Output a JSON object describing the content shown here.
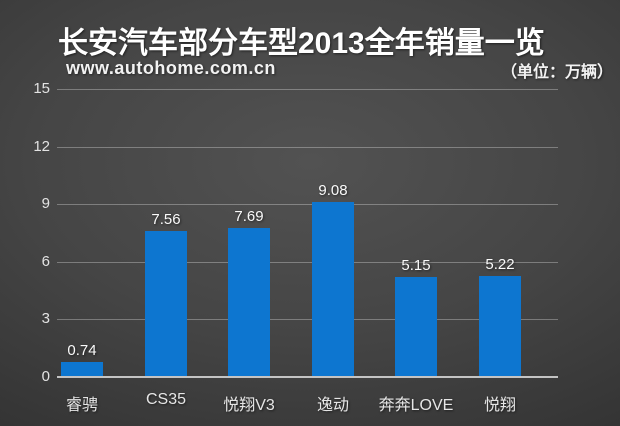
{
  "title": "长安汽车部分车型2013全年销量一览",
  "watermark": "www.autohome.com.cn",
  "unit_label": "（单位：万辆）",
  "colors": {
    "bar": "#0d76d0",
    "background_center": "#525252",
    "background_edge": "#202020",
    "gridline": "rgba(255,255,255,0.30)",
    "baseline": "#dcdcdc",
    "text": "#ffffff"
  },
  "chart_data": {
    "type": "bar",
    "title": "长安汽车部分车型2013全年销量一览",
    "categories": [
      "睿骋",
      "CS35",
      "悦翔V3",
      "逸动",
      "奔奔LOVE",
      "悦翔"
    ],
    "values": [
      0.74,
      7.56,
      7.69,
      9.08,
      5.15,
      5.22
    ],
    "value_labels": [
      "0.74",
      "7.56",
      "7.69",
      "9.08",
      "5.15",
      "5.22"
    ],
    "xlabel": "",
    "ylabel": "",
    "unit": "万辆",
    "ylim": [
      0,
      15
    ],
    "yticks": [
      0,
      3,
      6,
      9,
      12,
      15
    ],
    "grid": true,
    "legend": false,
    "bar_color": "#0d76d0"
  }
}
